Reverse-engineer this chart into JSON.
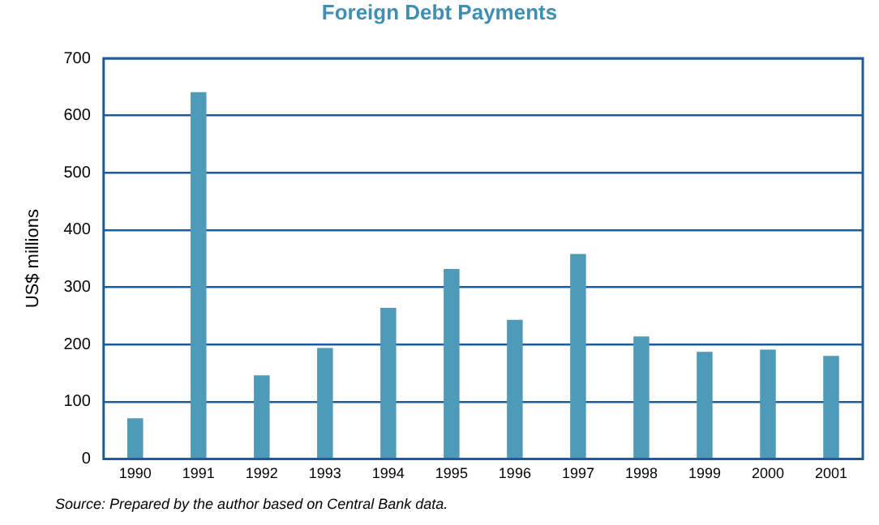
{
  "chart_data": {
    "type": "bar",
    "title": "Foreign Debt Payments",
    "ylabel": "US$ millions",
    "categories": [
      "1990",
      "1991",
      "1992",
      "1993",
      "1994",
      "1995",
      "1996",
      "1997",
      "1998",
      "1999",
      "2000",
      "2001"
    ],
    "values": [
      71,
      641,
      146,
      194,
      264,
      332,
      243,
      358,
      214,
      187,
      191,
      180
    ],
    "color": "#4f9ab8",
    "ylim": [
      0,
      700
    ],
    "yticks": [
      0,
      100,
      200,
      300,
      400,
      500,
      600,
      700
    ],
    "grid": "y",
    "legend": false,
    "annotations": [
      "Source: Prepared by the author based on Central Bank data."
    ]
  }
}
